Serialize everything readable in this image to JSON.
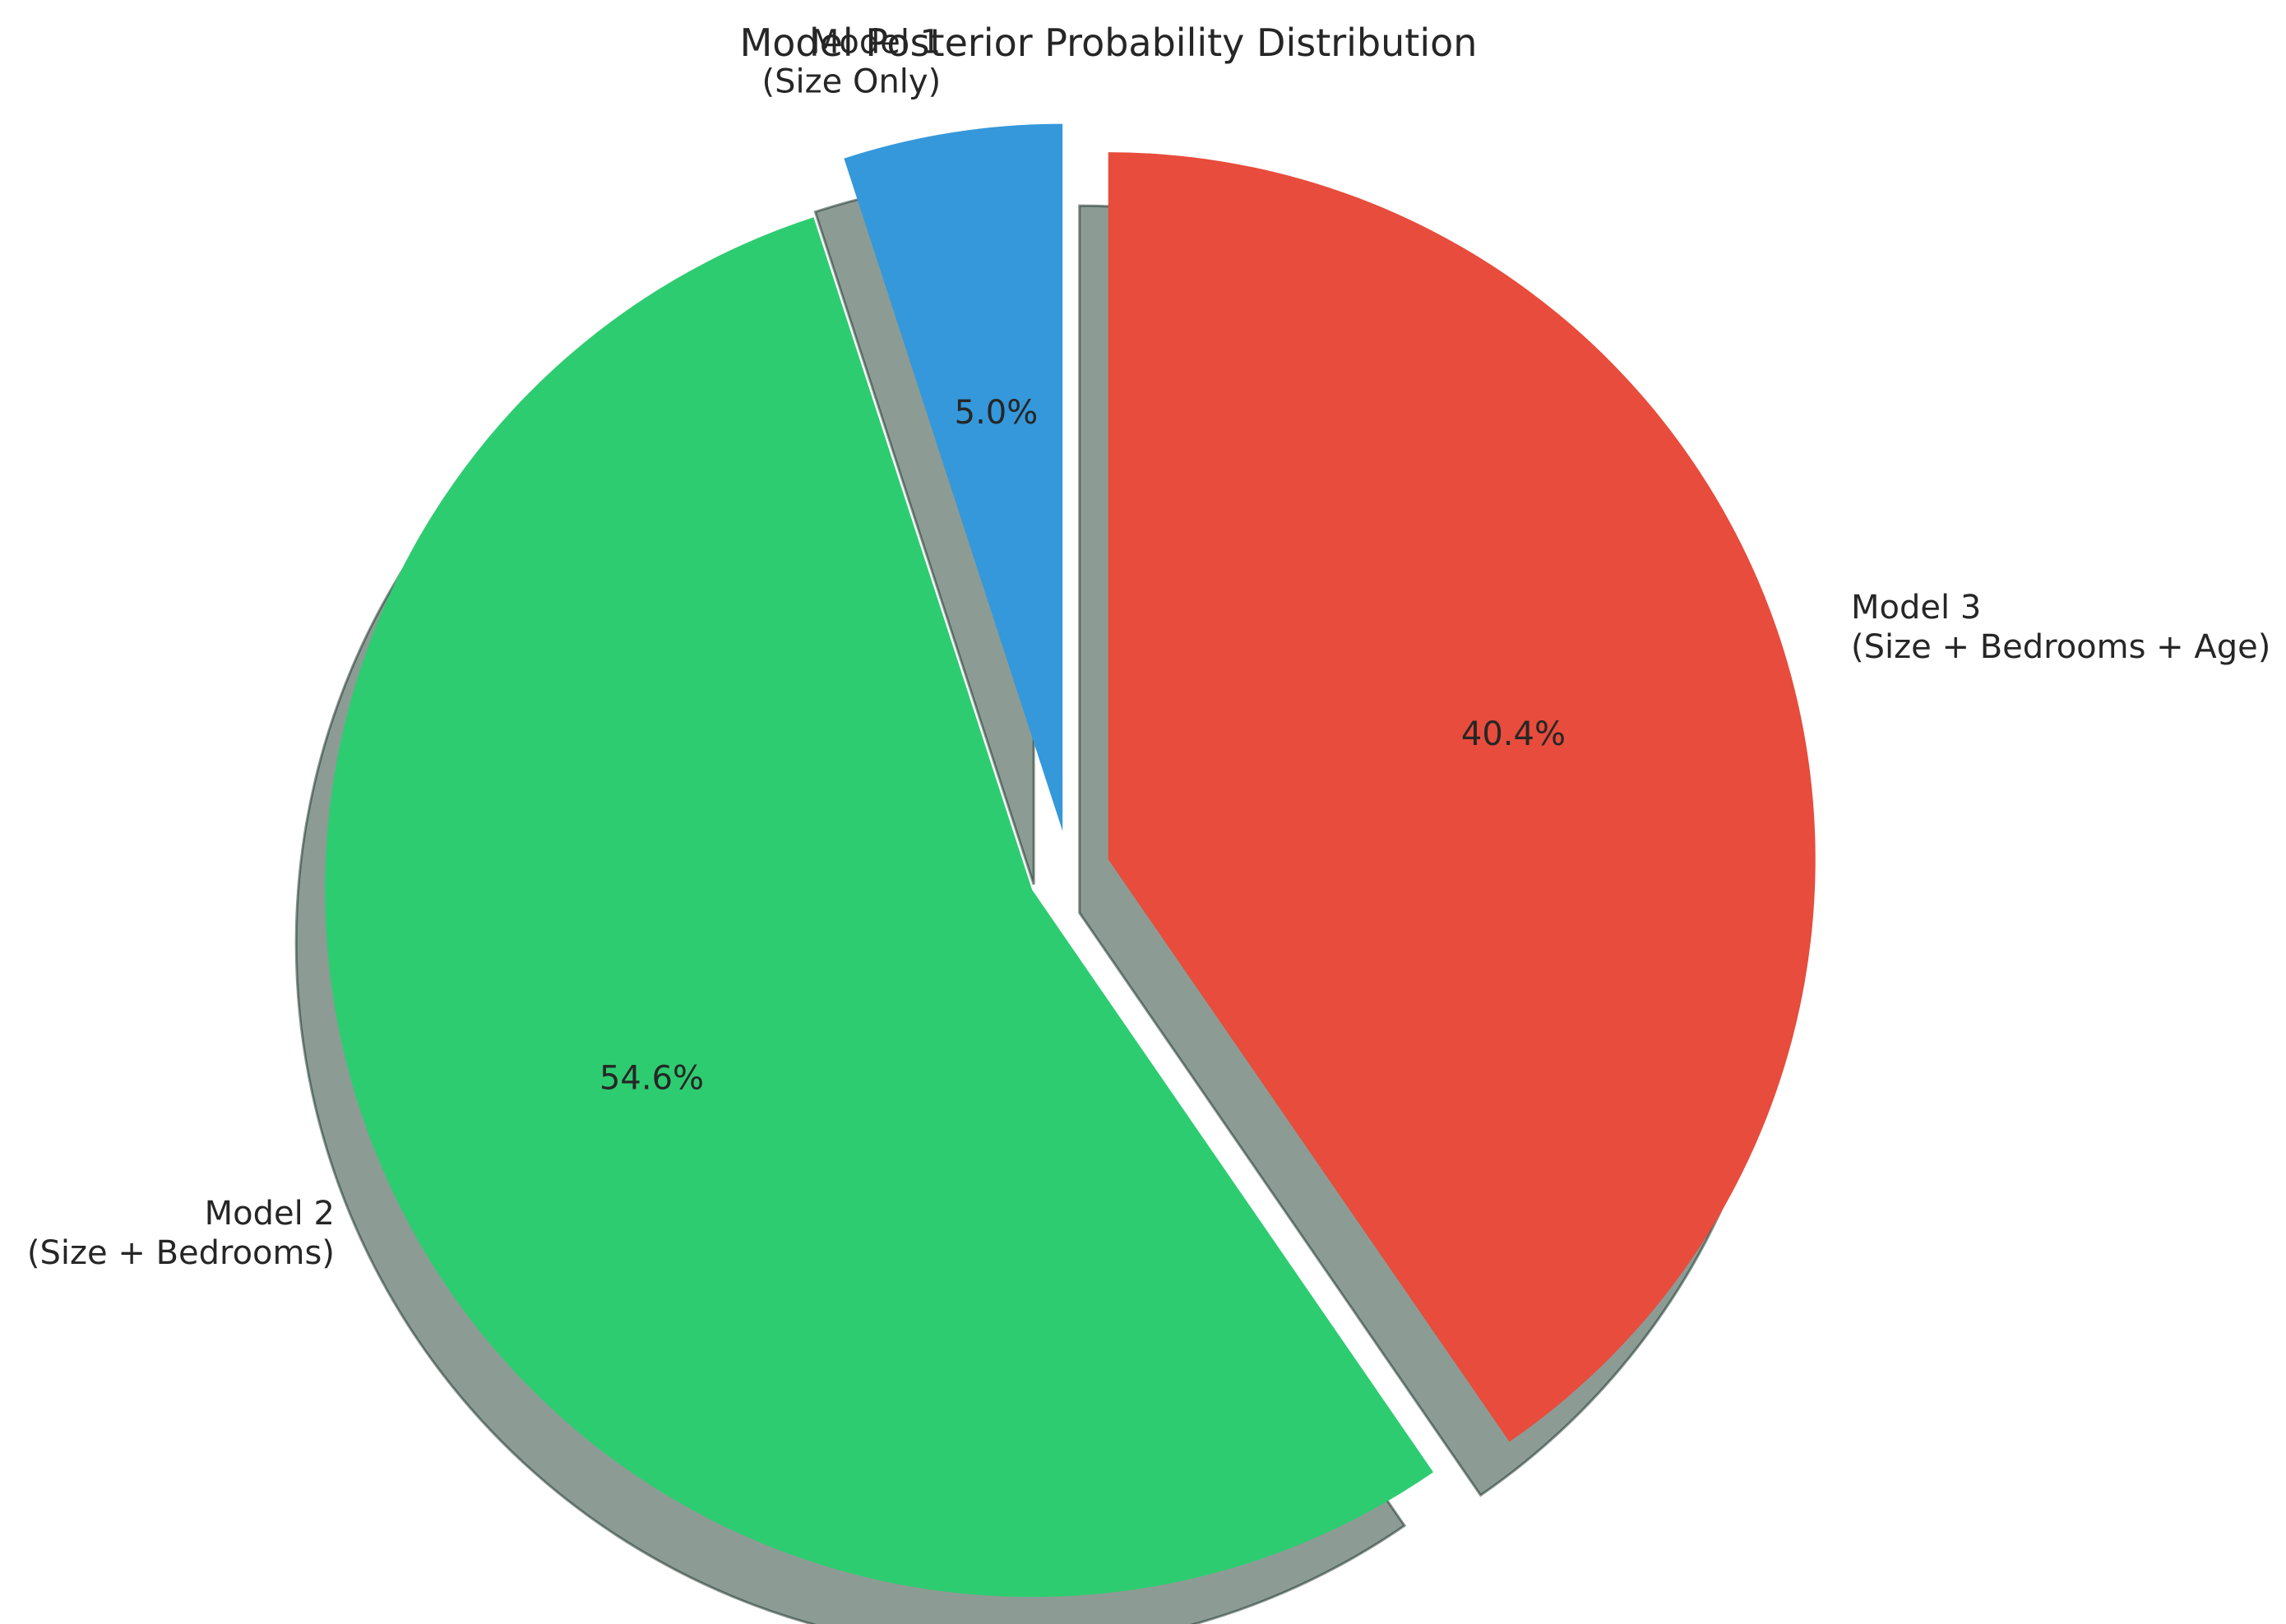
{
  "chart_data": {
    "type": "pie",
    "title": "Model Posterior Probability Distribution",
    "slices": [
      {
        "label_line1": "Model 1",
        "label_line2": "(Size Only)",
        "value": 5.0,
        "pct_label": "5.0%",
        "color": "#3498db"
      },
      {
        "label_line1": "Model 2",
        "label_line2": "(Size + Bedrooms)",
        "value": 54.6,
        "pct_label": "54.6%",
        "color": "#2ecc71"
      },
      {
        "label_line1": "Model 3",
        "label_line2": "(Size + Bedrooms + Age)",
        "value": 40.4,
        "pct_label": "40.4%",
        "color": "#e74c3c"
      }
    ],
    "start_angle_deg": 90,
    "direction": "counterclockwise",
    "exploded": true,
    "shadow": true
  }
}
